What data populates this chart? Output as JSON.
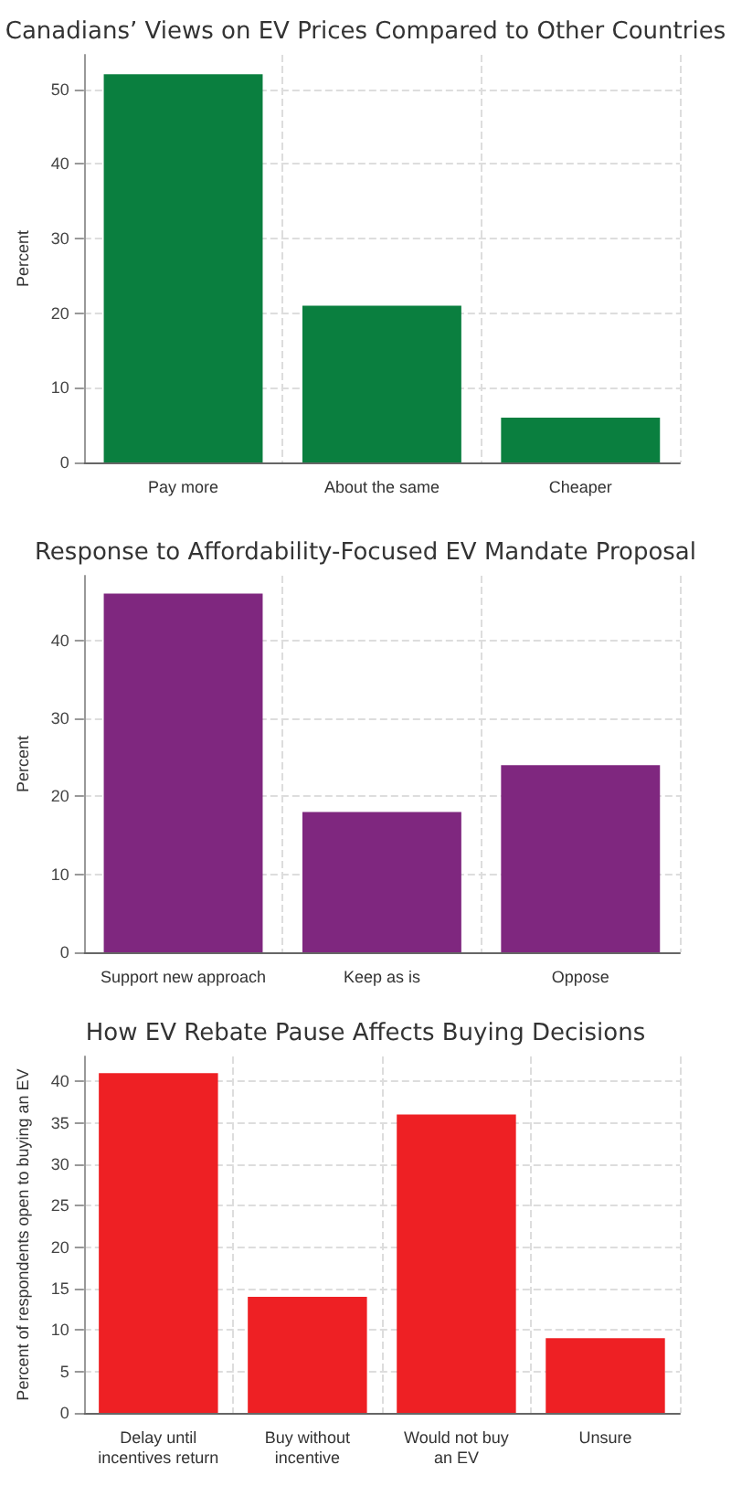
{
  "chart_data": [
    {
      "type": "bar",
      "title": "Canadians’ Views on EV Prices Compared to Other Countries",
      "ylabel": "Percent",
      "categories": [
        "Pay more",
        "About the same",
        "Cheaper"
      ],
      "values": [
        52,
        21,
        6
      ],
      "color": "#0a7f3f",
      "ylim": [
        0,
        54.6
      ],
      "yticks": [
        0,
        10,
        20,
        30,
        40,
        50
      ],
      "grid": true
    },
    {
      "type": "bar",
      "title": "Response to Affordability-Focused EV Mandate Proposal",
      "ylabel": "Percent",
      "categories": [
        "Support new approach",
        "Keep as is",
        "Oppose"
      ],
      "values": [
        46,
        18,
        24
      ],
      "color": "#7f277f",
      "ylim": [
        0,
        48.3
      ],
      "yticks": [
        0,
        10,
        20,
        30,
        40
      ],
      "grid": true
    },
    {
      "type": "bar",
      "title": "How EV Rebate Pause Affects Buying Decisions",
      "ylabel": "Percent of respondents open to buying an EV",
      "categories": [
        "Delay until\nincentives return",
        "Buy without\nincentive",
        "Would not buy\nan EV",
        "Unsure"
      ],
      "values": [
        41,
        14,
        36,
        9
      ],
      "color": "#ee2024",
      "ylim": [
        0,
        43
      ],
      "yticks": [
        0,
        5,
        10,
        15,
        20,
        25,
        30,
        35,
        40
      ],
      "grid": true
    }
  ]
}
